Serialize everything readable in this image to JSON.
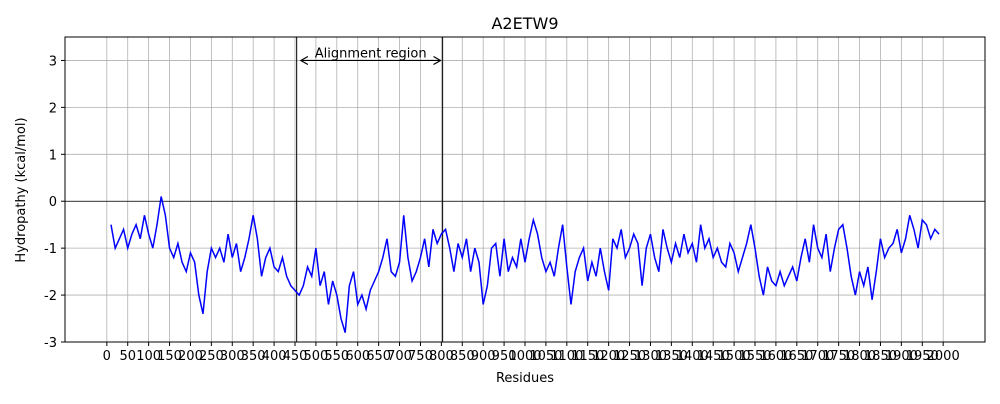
{
  "chart_data": {
    "type": "line",
    "title": "A2ETW9",
    "x_label": "Residues",
    "y_label": "Hydropathy (kcal/mol)",
    "x": [
      10,
      20,
      30,
      40,
      50,
      60,
      70,
      80,
      90,
      100,
      110,
      120,
      130,
      140,
      150,
      160,
      170,
      180,
      190,
      200,
      210,
      220,
      230,
      240,
      250,
      260,
      270,
      280,
      290,
      300,
      310,
      320,
      330,
      340,
      350,
      360,
      370,
      380,
      390,
      400,
      410,
      420,
      430,
      440,
      450,
      460,
      470,
      480,
      490,
      500,
      510,
      520,
      530,
      540,
      550,
      560,
      570,
      580,
      590,
      600,
      610,
      620,
      630,
      640,
      650,
      660,
      670,
      680,
      690,
      700,
      710,
      720,
      730,
      740,
      750,
      760,
      770,
      780,
      790,
      800,
      810,
      820,
      830,
      840,
      850,
      860,
      870,
      880,
      890,
      900,
      910,
      920,
      930,
      940,
      950,
      960,
      970,
      980,
      990,
      1000,
      1010,
      1020,
      1030,
      1040,
      1050,
      1060,
      1070,
      1080,
      1090,
      1100,
      1110,
      1120,
      1130,
      1140,
      1150,
      1160,
      1170,
      1180,
      1190,
      1200,
      1210,
      1220,
      1230,
      1240,
      1250,
      1260,
      1270,
      1280,
      1290,
      1300,
      1310,
      1320,
      1330,
      1340,
      1350,
      1360,
      1370,
      1380,
      1390,
      1400,
      1410,
      1420,
      1430,
      1440,
      1450,
      1460,
      1470,
      1480,
      1490,
      1500,
      1510,
      1520,
      1530,
      1540,
      1550,
      1560,
      1570,
      1580,
      1590,
      1600,
      1610,
      1620,
      1630,
      1640,
      1650,
      1660,
      1670,
      1680,
      1690,
      1700,
      1710,
      1720,
      1730,
      1740,
      1750,
      1760,
      1770,
      1780,
      1790,
      1800,
      1810,
      1820,
      1830,
      1840,
      1850,
      1860,
      1870,
      1880,
      1890,
      1900,
      1910,
      1920,
      1930,
      1940,
      1950,
      1960,
      1970,
      1980,
      1990
    ],
    "series": [
      {
        "color": "#0000ff",
        "values": [
          -0.5,
          -1.0,
          -0.8,
          -0.6,
          -1.0,
          -0.7,
          -0.5,
          -0.8,
          -0.3,
          -0.7,
          -1.0,
          -0.5,
          0.1,
          -0.3,
          -1.0,
          -1.2,
          -0.9,
          -1.3,
          -1.5,
          -1.1,
          -1.3,
          -2.0,
          -2.4,
          -1.5,
          -1.0,
          -1.2,
          -1.0,
          -1.3,
          -0.7,
          -1.2,
          -0.9,
          -1.5,
          -1.2,
          -0.8,
          -0.3,
          -0.8,
          -1.6,
          -1.2,
          -1.0,
          -1.4,
          -1.5,
          -1.2,
          -1.6,
          -1.8,
          -1.9,
          -2.0,
          -1.8,
          -1.4,
          -1.6,
          -1.0,
          -1.8,
          -1.5,
          -2.2,
          -1.7,
          -2.0,
          -2.5,
          -2.8,
          -1.8,
          -1.5,
          -2.2,
          -2.0,
          -2.3,
          -1.9,
          -1.7,
          -1.5,
          -1.2,
          -0.8,
          -1.5,
          -1.6,
          -1.3,
          -0.3,
          -1.2,
          -1.7,
          -1.5,
          -1.2,
          -0.8,
          -1.4,
          -0.6,
          -0.9,
          -0.7,
          -0.6,
          -1.0,
          -1.5,
          -0.9,
          -1.2,
          -0.8,
          -1.5,
          -1.0,
          -1.3,
          -2.2,
          -1.8,
          -1.0,
          -0.9,
          -1.6,
          -0.8,
          -1.5,
          -1.2,
          -1.4,
          -0.8,
          -1.3,
          -0.8,
          -0.4,
          -0.7,
          -1.2,
          -1.5,
          -1.3,
          -1.6,
          -1.0,
          -0.5,
          -1.4,
          -2.2,
          -1.5,
          -1.2,
          -1.0,
          -1.7,
          -1.3,
          -1.6,
          -1.0,
          -1.5,
          -1.9,
          -0.8,
          -1.0,
          -0.6,
          -1.2,
          -1.0,
          -0.7,
          -0.9,
          -1.8,
          -1.0,
          -0.7,
          -1.2,
          -1.5,
          -0.6,
          -1.0,
          -1.3,
          -0.9,
          -1.2,
          -0.7,
          -1.1,
          -0.9,
          -1.3,
          -0.5,
          -1.0,
          -0.8,
          -1.2,
          -1.0,
          -1.3,
          -1.4,
          -0.9,
          -1.1,
          -1.5,
          -1.2,
          -0.9,
          -0.5,
          -1.0,
          -1.6,
          -2.0,
          -1.4,
          -1.7,
          -1.8,
          -1.5,
          -1.8,
          -1.6,
          -1.4,
          -1.7,
          -1.2,
          -0.8,
          -1.3,
          -0.5,
          -1.0,
          -1.2,
          -0.7,
          -1.5,
          -1.0,
          -0.6,
          -0.5,
          -1.0,
          -1.6,
          -2.0,
          -1.5,
          -1.8,
          -1.4,
          -2.1,
          -1.5,
          -0.8,
          -1.2,
          -1.0,
          -0.9,
          -0.6,
          -1.1,
          -0.8,
          -0.3,
          -0.6,
          -1.0,
          -0.4,
          -0.5,
          -0.8,
          -0.6,
          -0.7
        ]
      }
    ],
    "xlim": [
      -100,
      2100
    ],
    "ylim": [
      -3,
      3.5
    ],
    "xticks": [
      0,
      50,
      100,
      150,
      200,
      250,
      300,
      350,
      400,
      450,
      500,
      550,
      600,
      650,
      700,
      750,
      800,
      850,
      900,
      950,
      1000,
      1050,
      1100,
      1150,
      1200,
      1250,
      1300,
      1350,
      1400,
      1450,
      1500,
      1550,
      1600,
      1650,
      1700,
      1750,
      1800,
      1850,
      1900,
      1950,
      2000
    ],
    "yticks": [
      -3,
      -2,
      -1,
      0,
      1,
      2,
      3
    ],
    "grid": true,
    "hline": 0,
    "vlines": [
      454,
      803
    ],
    "annotation": {
      "text": "Alignment region",
      "y": 3,
      "x_start": 464,
      "x_end": 798
    }
  }
}
